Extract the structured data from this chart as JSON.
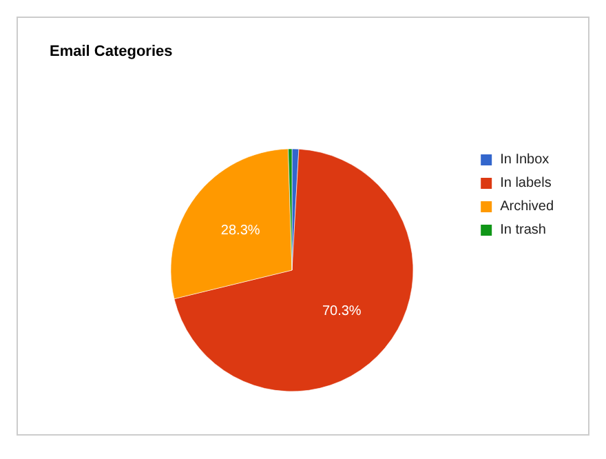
{
  "chart_data": {
    "type": "pie",
    "title": "Email Categories",
    "categories": [
      "In Inbox",
      "In labels",
      "Archived",
      "In trash"
    ],
    "values": [
      0.9,
      70.3,
      28.3,
      0.5
    ],
    "colors": [
      "#3366cc",
      "#dc3912",
      "#ff9900",
      "#109618"
    ],
    "value_labels": [
      null,
      "70.3%",
      "28.3%",
      null
    ],
    "legend": "right"
  }
}
